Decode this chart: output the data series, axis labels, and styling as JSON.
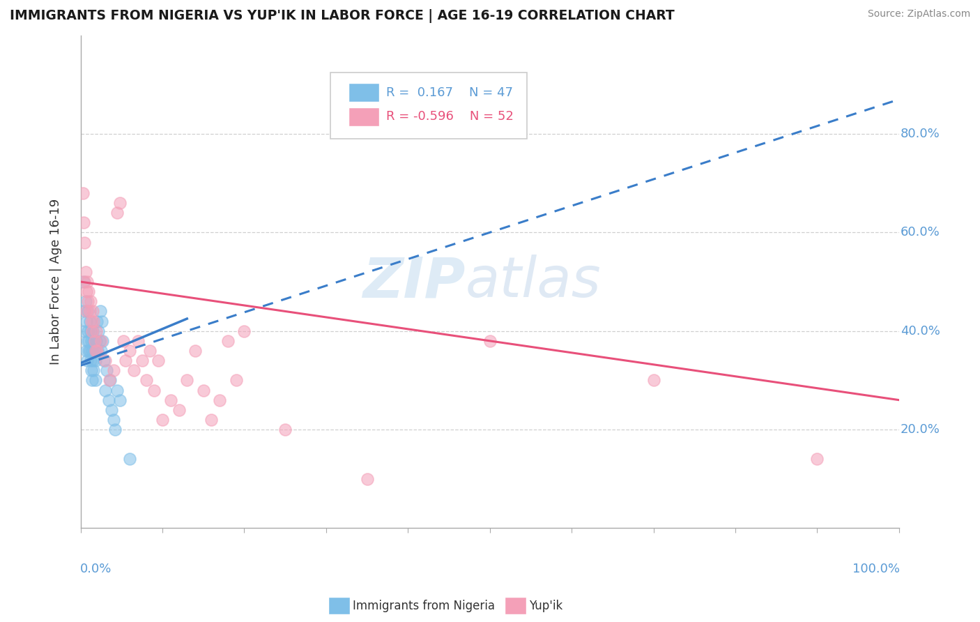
{
  "title": "IMMIGRANTS FROM NIGERIA VS YUP'IK IN LABOR FORCE | AGE 16-19 CORRELATION CHART",
  "source": "Source: ZipAtlas.com",
  "ylabel": "In Labor Force | Age 16-19",
  "xlim": [
    0,
    1.0
  ],
  "ylim": [
    0,
    1.0
  ],
  "yticks": [
    0.2,
    0.4,
    0.6,
    0.8
  ],
  "ytick_labels": [
    "20.0%",
    "40.0%",
    "60.0%",
    "80.0%"
  ],
  "legend_r_nigeria": "R =  0.167",
  "legend_n_nigeria": "N = 47",
  "legend_r_yupik": "R = -0.596",
  "legend_n_yupik": "N = 52",
  "nigeria_color": "#7fbfe8",
  "yupik_color": "#f4a0b8",
  "nigeria_line_color": "#3a7dc9",
  "yupik_line_color": "#e8507a",
  "watermark_zip": "ZIP",
  "watermark_atlas": "atlas",
  "nigeria_points": [
    [
      0.004,
      0.5
    ],
    [
      0.005,
      0.44
    ],
    [
      0.005,
      0.4
    ],
    [
      0.006,
      0.46
    ],
    [
      0.007,
      0.42
    ],
    [
      0.007,
      0.36
    ],
    [
      0.008,
      0.38
    ],
    [
      0.008,
      0.34
    ],
    [
      0.009,
      0.44
    ],
    [
      0.009,
      0.4
    ],
    [
      0.01,
      0.38
    ],
    [
      0.01,
      0.36
    ],
    [
      0.011,
      0.42
    ],
    [
      0.011,
      0.36
    ],
    [
      0.012,
      0.4
    ],
    [
      0.012,
      0.34
    ],
    [
      0.013,
      0.38
    ],
    [
      0.013,
      0.32
    ],
    [
      0.014,
      0.36
    ],
    [
      0.014,
      0.3
    ],
    [
      0.015,
      0.4
    ],
    [
      0.015,
      0.34
    ],
    [
      0.016,
      0.38
    ],
    [
      0.016,
      0.32
    ],
    [
      0.017,
      0.36
    ],
    [
      0.018,
      0.34
    ],
    [
      0.018,
      0.3
    ],
    [
      0.019,
      0.38
    ],
    [
      0.02,
      0.42
    ],
    [
      0.021,
      0.36
    ],
    [
      0.022,
      0.4
    ],
    [
      0.023,
      0.38
    ],
    [
      0.024,
      0.44
    ],
    [
      0.025,
      0.36
    ],
    [
      0.026,
      0.42
    ],
    [
      0.027,
      0.38
    ],
    [
      0.028,
      0.34
    ],
    [
      0.03,
      0.28
    ],
    [
      0.032,
      0.32
    ],
    [
      0.034,
      0.26
    ],
    [
      0.036,
      0.3
    ],
    [
      0.038,
      0.24
    ],
    [
      0.04,
      0.22
    ],
    [
      0.042,
      0.2
    ],
    [
      0.045,
      0.28
    ],
    [
      0.048,
      0.26
    ],
    [
      0.06,
      0.14
    ]
  ],
  "yupik_points": [
    [
      0.003,
      0.68
    ],
    [
      0.004,
      0.62
    ],
    [
      0.005,
      0.58
    ],
    [
      0.005,
      0.5
    ],
    [
      0.006,
      0.52
    ],
    [
      0.007,
      0.48
    ],
    [
      0.007,
      0.44
    ],
    [
      0.008,
      0.5
    ],
    [
      0.009,
      0.46
    ],
    [
      0.01,
      0.48
    ],
    [
      0.011,
      0.44
    ],
    [
      0.012,
      0.46
    ],
    [
      0.013,
      0.42
    ],
    [
      0.014,
      0.4
    ],
    [
      0.015,
      0.44
    ],
    [
      0.016,
      0.42
    ],
    [
      0.017,
      0.38
    ],
    [
      0.018,
      0.36
    ],
    [
      0.019,
      0.4
    ],
    [
      0.02,
      0.36
    ],
    [
      0.025,
      0.38
    ],
    [
      0.03,
      0.34
    ],
    [
      0.035,
      0.3
    ],
    [
      0.04,
      0.32
    ],
    [
      0.045,
      0.64
    ],
    [
      0.048,
      0.66
    ],
    [
      0.052,
      0.38
    ],
    [
      0.055,
      0.34
    ],
    [
      0.06,
      0.36
    ],
    [
      0.065,
      0.32
    ],
    [
      0.07,
      0.38
    ],
    [
      0.075,
      0.34
    ],
    [
      0.08,
      0.3
    ],
    [
      0.085,
      0.36
    ],
    [
      0.09,
      0.28
    ],
    [
      0.095,
      0.34
    ],
    [
      0.1,
      0.22
    ],
    [
      0.11,
      0.26
    ],
    [
      0.12,
      0.24
    ],
    [
      0.13,
      0.3
    ],
    [
      0.14,
      0.36
    ],
    [
      0.15,
      0.28
    ],
    [
      0.16,
      0.22
    ],
    [
      0.17,
      0.26
    ],
    [
      0.18,
      0.38
    ],
    [
      0.19,
      0.3
    ],
    [
      0.2,
      0.4
    ],
    [
      0.25,
      0.2
    ],
    [
      0.35,
      0.1
    ],
    [
      0.5,
      0.38
    ],
    [
      0.7,
      0.3
    ],
    [
      0.9,
      0.14
    ]
  ],
  "nigeria_trend": [
    0.0,
    1.0,
    0.33,
    0.87
  ],
  "yupik_trend": [
    0.0,
    1.0,
    0.5,
    0.26
  ]
}
